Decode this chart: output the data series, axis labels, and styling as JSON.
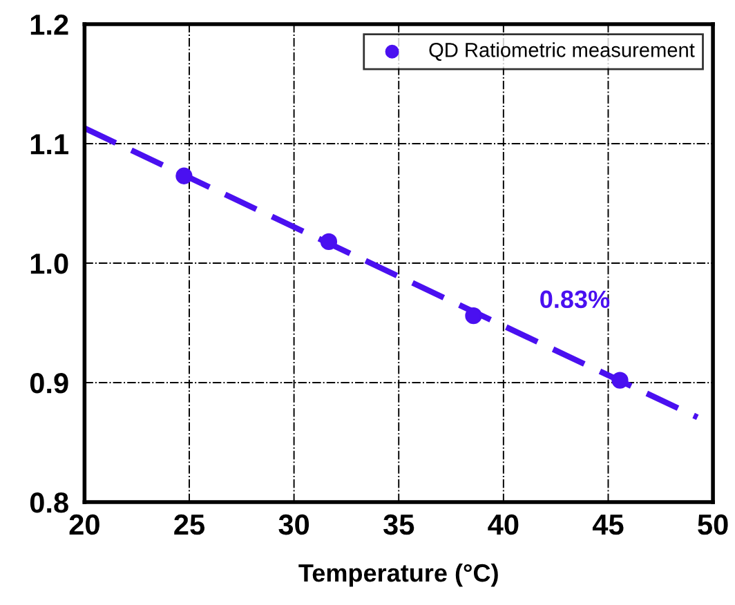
{
  "chart_data": {
    "type": "scatter",
    "xlabel": "Temperature (°C)",
    "series": [
      {
        "name": "QD Ratiometric measurement",
        "color": "#4a10f0",
        "x": [
          24.75,
          31.66,
          38.57,
          45.56
        ],
        "values": [
          1.073,
          1.018,
          0.956,
          0.902
        ],
        "marker": "circle"
      },
      {
        "type": "line",
        "color": "#4a10f0",
        "x": [
          20,
          49.26
        ],
        "values": [
          1.113,
          0.871
        ],
        "line_style": "dashed",
        "marker": "none"
      }
    ],
    "annotations": [
      "0.83%"
    ],
    "xlim": [
      20,
      50
    ],
    "xticks": [
      20,
      25,
      30,
      35,
      40,
      45,
      50
    ],
    "ylim": [
      0.8,
      1.2
    ],
    "yticks": [
      0.8,
      0.9,
      {
        "value": 1,
        "label": "1.0"
      },
      1.1,
      1.2
    ],
    "grid": true,
    "legend": "top right"
  }
}
